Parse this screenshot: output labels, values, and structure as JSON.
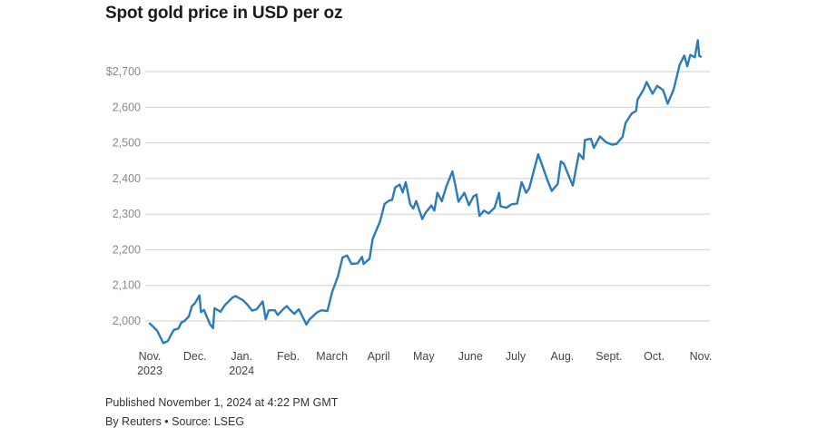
{
  "title": "Spot gold price in USD per oz",
  "footer": {
    "published": "Published November 1, 2024 at 4:22 PM GMT",
    "byline": "By Reuters • Source: LSEG"
  },
  "colors": {
    "line": "#2b7bba",
    "grid": "#cfcfcf"
  },
  "chart_data": {
    "type": "line",
    "title": "Spot gold price in USD per oz",
    "xlabel": "",
    "ylabel": "",
    "ylim": [
      1930,
      2800
    ],
    "y_ticks": [
      {
        "value": 2000,
        "label": "2,000"
      },
      {
        "value": 2100,
        "label": "2,100"
      },
      {
        "value": 2200,
        "label": "2,200"
      },
      {
        "value": 2300,
        "label": "2,300"
      },
      {
        "value": 2400,
        "label": "2,400"
      },
      {
        "value": 2500,
        "label": "2,500"
      },
      {
        "value": 2600,
        "label": "2,600"
      },
      {
        "value": 2700,
        "label": "$2,700"
      }
    ],
    "x_ticks": [
      {
        "date": "2023-11-01",
        "label": "Nov.",
        "label2": "2023"
      },
      {
        "date": "2023-12-01",
        "label": "Dec.",
        "label2": ""
      },
      {
        "date": "2024-01-01",
        "label": "Jan.",
        "label2": "2024"
      },
      {
        "date": "2024-02-01",
        "label": "Feb.",
        "label2": ""
      },
      {
        "date": "2024-03-01",
        "label": "March",
        "label2": ""
      },
      {
        "date": "2024-04-01",
        "label": "April",
        "label2": ""
      },
      {
        "date": "2024-05-01",
        "label": "May",
        "label2": ""
      },
      {
        "date": "2024-06-01",
        "label": "June",
        "label2": ""
      },
      {
        "date": "2024-07-01",
        "label": "July",
        "label2": ""
      },
      {
        "date": "2024-08-01",
        "label": "Aug.",
        "label2": ""
      },
      {
        "date": "2024-09-01",
        "label": "Sept.",
        "label2": ""
      },
      {
        "date": "2024-10-01",
        "label": "Oct.",
        "label2": ""
      },
      {
        "date": "2024-11-01",
        "label": "Nov.",
        "label2": ""
      }
    ],
    "grid": true,
    "series": [
      {
        "points": [
          [
            "2023-11-01",
            1993
          ],
          [
            "2023-11-03",
            1985
          ],
          [
            "2023-11-06",
            1972
          ],
          [
            "2023-11-08",
            1955
          ],
          [
            "2023-11-10",
            1938
          ],
          [
            "2023-11-13",
            1944
          ],
          [
            "2023-11-15",
            1960
          ],
          [
            "2023-11-17",
            1975
          ],
          [
            "2023-11-20",
            1979
          ],
          [
            "2023-11-22",
            1996
          ],
          [
            "2023-11-24",
            2000
          ],
          [
            "2023-11-27",
            2013
          ],
          [
            "2023-11-29",
            2042
          ],
          [
            "2023-12-01",
            2050
          ],
          [
            "2023-12-04",
            2072
          ],
          [
            "2023-12-05",
            2025
          ],
          [
            "2023-12-07",
            2031
          ],
          [
            "2023-12-11",
            1991
          ],
          [
            "2023-12-13",
            1980
          ],
          [
            "2023-12-14",
            2036
          ],
          [
            "2023-12-18",
            2026
          ],
          [
            "2023-12-21",
            2045
          ],
          [
            "2023-12-26",
            2066
          ],
          [
            "2023-12-28",
            2070
          ],
          [
            "2024-01-02",
            2058
          ],
          [
            "2024-01-05",
            2045
          ],
          [
            "2024-01-08",
            2029
          ],
          [
            "2024-01-11",
            2033
          ],
          [
            "2024-01-15",
            2055
          ],
          [
            "2024-01-17",
            2005
          ],
          [
            "2024-01-19",
            2030
          ],
          [
            "2024-01-23",
            2030
          ],
          [
            "2024-01-25",
            2017
          ],
          [
            "2024-01-29",
            2035
          ],
          [
            "2024-01-31",
            2042
          ],
          [
            "2024-02-02",
            2032
          ],
          [
            "2024-02-05",
            2020
          ],
          [
            "2024-02-08",
            2033
          ],
          [
            "2024-02-13",
            1990
          ],
          [
            "2024-02-15",
            2004
          ],
          [
            "2024-02-20",
            2024
          ],
          [
            "2024-02-23",
            2030
          ],
          [
            "2024-02-27",
            2028
          ],
          [
            "2024-03-01",
            2080
          ],
          [
            "2024-03-05",
            2126
          ],
          [
            "2024-03-08",
            2178
          ],
          [
            "2024-03-11",
            2184
          ],
          [
            "2024-03-14",
            2160
          ],
          [
            "2024-03-18",
            2162
          ],
          [
            "2024-03-21",
            2180
          ],
          [
            "2024-03-22",
            2160
          ],
          [
            "2024-03-26",
            2175
          ],
          [
            "2024-03-28",
            2230
          ],
          [
            "2024-04-02",
            2280
          ],
          [
            "2024-04-05",
            2329
          ],
          [
            "2024-04-08",
            2338
          ],
          [
            "2024-04-10",
            2340
          ],
          [
            "2024-04-12",
            2375
          ],
          [
            "2024-04-15",
            2383
          ],
          [
            "2024-04-17",
            2361
          ],
          [
            "2024-04-19",
            2390
          ],
          [
            "2024-04-22",
            2327
          ],
          [
            "2024-04-24",
            2316
          ],
          [
            "2024-04-26",
            2337
          ],
          [
            "2024-04-30",
            2286
          ],
          [
            "2024-05-02",
            2303
          ],
          [
            "2024-05-06",
            2324
          ],
          [
            "2024-05-08",
            2310
          ],
          [
            "2024-05-10",
            2360
          ],
          [
            "2024-05-13",
            2336
          ],
          [
            "2024-05-16",
            2378
          ],
          [
            "2024-05-20",
            2420
          ],
          [
            "2024-05-22",
            2380
          ],
          [
            "2024-05-24",
            2335
          ],
          [
            "2024-05-28",
            2360
          ],
          [
            "2024-05-31",
            2325
          ],
          [
            "2024-06-03",
            2350
          ],
          [
            "2024-06-05",
            2355
          ],
          [
            "2024-06-07",
            2295
          ],
          [
            "2024-06-10",
            2310
          ],
          [
            "2024-06-13",
            2302
          ],
          [
            "2024-06-17",
            2318
          ],
          [
            "2024-06-20",
            2360
          ],
          [
            "2024-06-21",
            2322
          ],
          [
            "2024-06-25",
            2318
          ],
          [
            "2024-06-28",
            2327
          ],
          [
            "2024-07-02",
            2330
          ],
          [
            "2024-07-05",
            2390
          ],
          [
            "2024-07-08",
            2360
          ],
          [
            "2024-07-10",
            2372
          ],
          [
            "2024-07-16",
            2468
          ],
          [
            "2024-07-18",
            2445
          ],
          [
            "2024-07-22",
            2397
          ],
          [
            "2024-07-25",
            2365
          ],
          [
            "2024-07-29",
            2385
          ],
          [
            "2024-07-31",
            2448
          ],
          [
            "2024-08-02",
            2442
          ],
          [
            "2024-08-05",
            2410
          ],
          [
            "2024-08-08",
            2380
          ],
          [
            "2024-08-12",
            2470
          ],
          [
            "2024-08-15",
            2455
          ],
          [
            "2024-08-16",
            2508
          ],
          [
            "2024-08-20",
            2512
          ],
          [
            "2024-08-22",
            2486
          ],
          [
            "2024-08-26",
            2518
          ],
          [
            "2024-08-30",
            2502
          ],
          [
            "2024-09-03",
            2495
          ],
          [
            "2024-09-06",
            2497
          ],
          [
            "2024-09-10",
            2517
          ],
          [
            "2024-09-12",
            2556
          ],
          [
            "2024-09-16",
            2582
          ],
          [
            "2024-09-19",
            2590
          ],
          [
            "2024-09-20",
            2621
          ],
          [
            "2024-09-24",
            2650
          ],
          [
            "2024-09-26",
            2671
          ],
          [
            "2024-09-30",
            2638
          ],
          [
            "2024-10-03",
            2660
          ],
          [
            "2024-10-07",
            2648
          ],
          [
            "2024-10-10",
            2610
          ],
          [
            "2024-10-14",
            2650
          ],
          [
            "2024-10-18",
            2720
          ],
          [
            "2024-10-21",
            2745
          ],
          [
            "2024-10-23",
            2715
          ],
          [
            "2024-10-25",
            2747
          ],
          [
            "2024-10-28",
            2740
          ],
          [
            "2024-10-30",
            2788
          ],
          [
            "2024-10-31",
            2744
          ],
          [
            "2024-11-01",
            2742
          ]
        ]
      }
    ]
  }
}
